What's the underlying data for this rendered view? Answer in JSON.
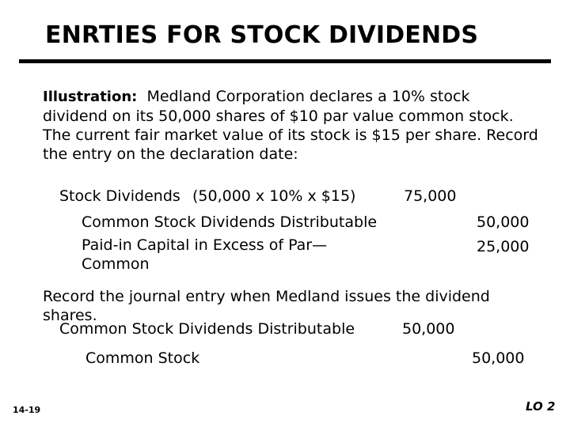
{
  "slide": {
    "title": "ENRTIES FOR STOCK DIVIDENDS",
    "illustration": {
      "label": "Illustration:",
      "line1": "Medland Corporation declares a 10% stock",
      "line2": "dividend on its 50,000 shares of $10 par value common stock.",
      "line3": "The current fair market value of its stock is $15 per share. Record",
      "line4": "the entry on the declaration date:"
    },
    "entry1": {
      "debit_account": "Stock Dividends",
      "debit_calc": "(50,000 x 10% x $15)",
      "debit_amount": "75,000",
      "credit1_account": "Common Stock Dividends Distributable",
      "credit1_amount": "50,000",
      "credit2_account_line1": "Paid-in Capital in Excess of Par—",
      "credit2_account_line2": "Common",
      "credit2_amount": "25,000"
    },
    "record_text_line1": "Record the journal entry when Medland issues the dividend",
    "record_text_line2": "shares.",
    "entry2": {
      "debit_account": "Common Stock Dividends Distributable",
      "debit_amount": "50,000",
      "credit_account": "Common Stock",
      "credit_amount": "50,000"
    },
    "slide_number": "14-19",
    "learning_objective": "LO 2"
  }
}
